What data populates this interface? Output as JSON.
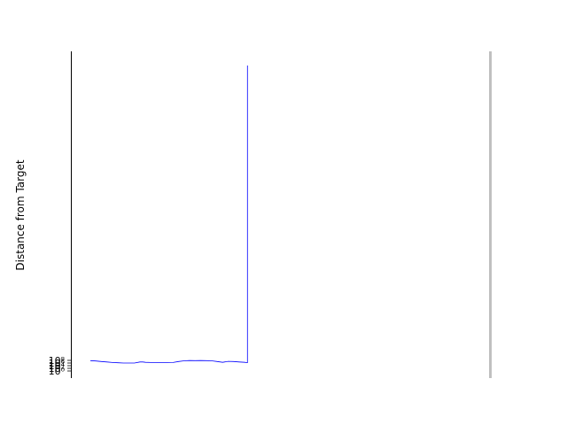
{
  "chart_data": {
    "type": "line",
    "title": "",
    "xlabel": "",
    "ylabel": "Distance from Target",
    "yscale": "log",
    "grid": false,
    "legend": "none",
    "y_tick_labels": [
      "10⁰",
      "10²",
      "10⁴",
      "10⁶",
      "10⁸"
    ],
    "target_line": {
      "description": "vertical gray reference line at right edge of plot",
      "color": "#c0c0c0"
    },
    "series": [
      {
        "color": "#0000ff",
        "x": [
          0,
          2,
          4,
          6,
          8,
          10,
          12,
          14,
          16,
          18,
          19,
          20,
          22,
          24,
          26,
          28,
          30,
          32,
          34,
          36,
          38,
          40,
          42,
          44,
          46,
          48,
          50,
          52,
          54,
          56,
          57,
          57
        ],
        "y": [
          120000000.0,
          80000000.0,
          50000000.0,
          30000000.0,
          18000000.0,
          13000000.0,
          10000000.0,
          10000000.0,
          10000000.0,
          30000000.0,
          30000000.0,
          20000000.0,
          18000000.0,
          17000000.0,
          16000000.0,
          16000000.0,
          18000000.0,
          50000000.0,
          100000000.0,
          130000000.0,
          120000000.0,
          130000000.0,
          120000000.0,
          100000000.0,
          50000000.0,
          20000000.0,
          60000000.0,
          50000000.0,
          30000000.0,
          20000000.0,
          15000000.0,
          1e+300
        ]
      }
    ],
    "x_range": [
      0,
      145
    ]
  }
}
